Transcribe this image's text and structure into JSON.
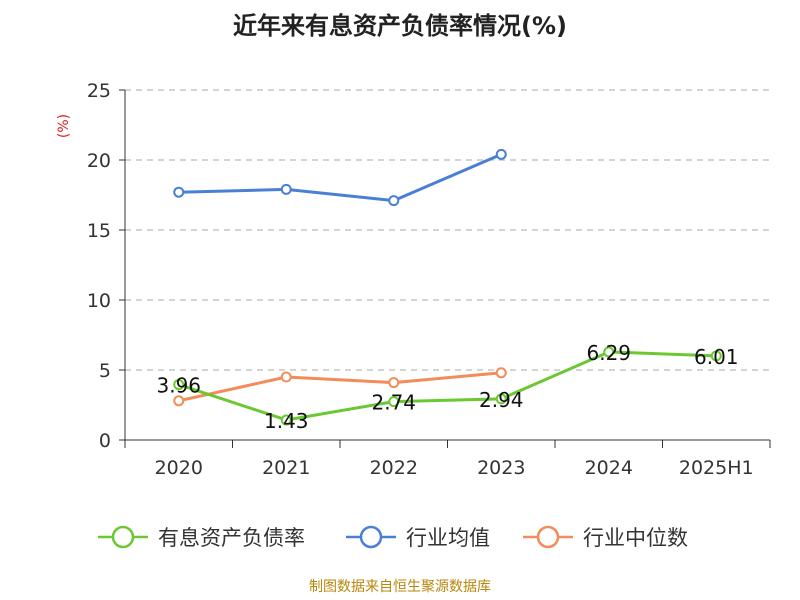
{
  "title": "近年来有息资产负债率情况(%)",
  "source": "制图数据来自恒生聚源数据库",
  "chart_data": {
    "type": "line",
    "title": "近年来有息资产负债率情况(%)",
    "ylabel": "(%)",
    "ylim": [
      0,
      25
    ],
    "yticks": [
      0,
      5,
      10,
      15,
      20,
      25
    ],
    "grid": true,
    "legend_position": "bottom",
    "categories": [
      "2020",
      "2021",
      "2022",
      "2023",
      "2024",
      "2025H1"
    ],
    "series": [
      {
        "name": "有息资产负债率",
        "color": "#6cc832",
        "values": [
          3.96,
          1.43,
          2.74,
          2.94,
          6.29,
          6.01
        ],
        "labels": [
          "3.96",
          "1.43",
          "2.74",
          "2.94",
          "6.29",
          "6.01"
        ]
      },
      {
        "name": "行业均值",
        "color": "#4a7fd6",
        "values": [
          17.7,
          17.9,
          17.1,
          20.4,
          null,
          null
        ]
      },
      {
        "name": "行业中位数",
        "color": "#f28c5a",
        "values": [
          2.8,
          4.5,
          4.1,
          4.8,
          null,
          null
        ]
      }
    ]
  }
}
